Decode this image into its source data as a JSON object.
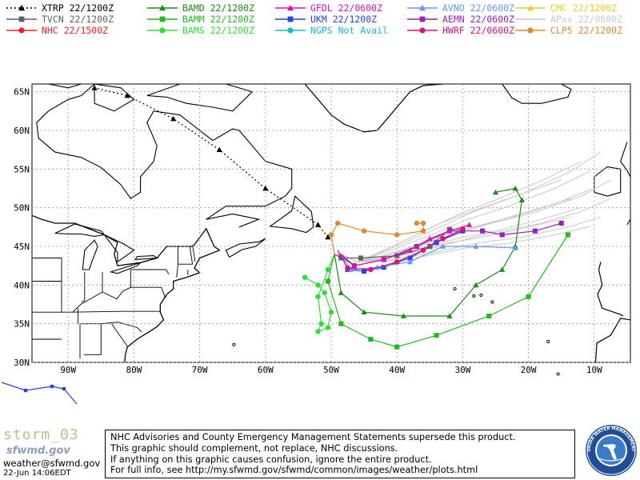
{
  "legend": [
    {
      "label": "XTRP  22/1200Z",
      "color": "#000000",
      "marker": "triangle",
      "dashed": true
    },
    {
      "label": "TVCN  22/1200Z",
      "color": "#606060",
      "marker": "square",
      "dashed": false
    },
    {
      "label": "NHC  22/1500Z",
      "color": "#ee2222",
      "marker": "circle",
      "dashed": false
    },
    {
      "label": "BAMD  22/1200Z",
      "color": "#1a8c1a",
      "marker": "triangle",
      "dashed": false
    },
    {
      "label": "BAMM  22/1200Z",
      "color": "#22bb22",
      "marker": "square",
      "dashed": false
    },
    {
      "label": "BAMS  22/1200Z",
      "color": "#33dd33",
      "marker": "circle",
      "dashed": false
    },
    {
      "label": "GFDL  22/0600Z",
      "color": "#dd11aa",
      "marker": "triangle",
      "dashed": false
    },
    {
      "label": "UKM  22/1200Z",
      "color": "#2244ee",
      "marker": "square",
      "dashed": false
    },
    {
      "label": "NGPS  Not Avail",
      "color": "#11bbcc",
      "marker": "circle",
      "dashed": false
    },
    {
      "label": "AVNO  22/0600Z",
      "color": "#6699ee",
      "marker": "triangle",
      "dashed": false
    },
    {
      "label": "AEMN  22/0600Z",
      "color": "#9922bb",
      "marker": "square",
      "dashed": false
    },
    {
      "label": "HWRF  22/0600Z",
      "color": "#dd1177",
      "marker": "circle",
      "dashed": false
    },
    {
      "label": "CMC  22/1200Z",
      "color": "#eecc22",
      "marker": "triangle",
      "dashed": false
    },
    {
      "label": "APxx  22/0600Z",
      "color": "#c8c8c8",
      "marker": "none",
      "dashed": false
    },
    {
      "label": "CLP5  22/1200Z",
      "color": "#e08833",
      "marker": "circle",
      "dashed": false
    }
  ],
  "map": {
    "lat_labels": [
      "65N",
      "60N",
      "55N",
      "50N",
      "45N",
      "40N",
      "35N",
      "30N"
    ],
    "lon_labels": [
      "90W",
      "80W",
      "70W",
      "60W",
      "50W",
      "40W",
      "30W",
      "20W",
      "10W"
    ],
    "lat_values": [
      65,
      60,
      55,
      50,
      45,
      40,
      35,
      30
    ],
    "lon_values": [
      -90,
      -80,
      -70,
      -60,
      -50,
      -40,
      -30,
      -20,
      -10
    ],
    "lon_range": [
      -95.5,
      -4.5
    ],
    "lat_range": [
      30,
      66
    ]
  },
  "tracks": [
    {
      "name": "XTRP",
      "color": "#000000",
      "marker": "triangle",
      "dashed": true,
      "points": [
        [
          -50.5,
          46.2
        ],
        [
          -52,
          47.8
        ],
        [
          -60,
          52.5
        ],
        [
          -67,
          57.5
        ],
        [
          -74,
          61.5
        ],
        [
          -81,
          64.5
        ],
        [
          -86,
          65.5
        ]
      ]
    },
    {
      "name": "BAMD",
      "color": "#1a8c1a",
      "marker": "triangle",
      "dashed": false,
      "points": [
        [
          -49.5,
          44
        ],
        [
          -48.5,
          39
        ],
        [
          -45,
          36.5
        ],
        [
          -39,
          36
        ],
        [
          -32,
          36
        ],
        [
          -28,
          40
        ],
        [
          -24,
          42
        ],
        [
          -22,
          45
        ],
        [
          -21,
          51
        ],
        [
          -22,
          52.5
        ],
        [
          -25,
          52
        ]
      ]
    },
    {
      "name": "BAMM",
      "color": "#22bb22",
      "marker": "square",
      "dashed": false,
      "points": [
        [
          -49.5,
          44
        ],
        [
          -50.5,
          40.5
        ],
        [
          -48.5,
          35
        ],
        [
          -44,
          33
        ],
        [
          -40,
          32
        ],
        [
          -34,
          33.5
        ],
        [
          -26,
          36
        ],
        [
          -20,
          38.5
        ],
        [
          -14,
          46.5
        ]
      ]
    },
    {
      "name": "BAMS",
      "color": "#33dd33",
      "marker": "circle",
      "dashed": false,
      "points": [
        [
          -49.5,
          44
        ],
        [
          -50.5,
          42
        ],
        [
          -52,
          38.5
        ],
        [
          -51.5,
          35
        ],
        [
          -52,
          34
        ],
        [
          -50.5,
          34.5
        ],
        [
          -50,
          36.5
        ],
        [
          -51,
          39
        ],
        [
          -52,
          40
        ],
        [
          -54,
          41
        ]
      ]
    },
    {
      "name": "CLP5",
      "color": "#e08833",
      "marker": "circle",
      "dashed": false,
      "points": [
        [
          -49.5,
          44
        ],
        [
          -50,
          46.5
        ],
        [
          -49,
          48
        ],
        [
          -45,
          47
        ],
        [
          -40,
          46.5
        ],
        [
          -36,
          47
        ],
        [
          -36,
          48
        ],
        [
          -37,
          48
        ]
      ]
    },
    {
      "name": "TVCN",
      "color": "#606060",
      "marker": "square",
      "dashed": false,
      "points": [
        [
          -49.5,
          44
        ],
        [
          -48.5,
          43.5
        ],
        [
          -45.5,
          43.5
        ],
        [
          -40,
          43.8
        ],
        [
          -35,
          45
        ],
        [
          -32,
          47.2
        ],
        [
          -30,
          47.2
        ]
      ]
    },
    {
      "name": "UKM",
      "color": "#2244ee",
      "marker": "square",
      "dashed": false,
      "points": [
        [
          -48.5,
          44
        ],
        [
          -47.5,
          42
        ],
        [
          -45,
          41.8
        ],
        [
          -42,
          42.3
        ],
        [
          -38,
          43.5
        ],
        [
          -34,
          45.5
        ],
        [
          -30,
          47
        ]
      ]
    },
    {
      "name": "AVNO",
      "color": "#6699ee",
      "marker": "triangle",
      "dashed": false,
      "points": [
        [
          -48.5,
          44
        ],
        [
          -47,
          42
        ],
        [
          -43,
          42.3
        ],
        [
          -38,
          43
        ],
        [
          -33,
          45
        ],
        [
          -28,
          45
        ],
        [
          -22,
          44.8
        ]
      ]
    },
    {
      "name": "AEMN",
      "color": "#9922bb",
      "marker": "square",
      "dashed": false,
      "points": [
        [
          -48.5,
          44
        ],
        [
          -46.5,
          42.5
        ],
        [
          -42,
          43.3
        ],
        [
          -37,
          45
        ],
        [
          -32,
          47
        ],
        [
          -27,
          47
        ],
        [
          -24,
          46.5
        ],
        [
          -19,
          47
        ],
        [
          -15,
          48
        ]
      ]
    },
    {
      "name": "GFDL",
      "color": "#dd11aa",
      "marker": "triangle",
      "dashed": false,
      "points": [
        [
          -49,
          44
        ],
        [
          -46.5,
          42.5
        ],
        [
          -42,
          43.3
        ],
        [
          -38,
          44.5
        ],
        [
          -35,
          46
        ],
        [
          -32,
          47
        ],
        [
          -29,
          47.8
        ]
      ]
    },
    {
      "name": "HWRF",
      "color": "#dd1177",
      "marker": "circle",
      "dashed": false,
      "points": [
        [
          -49,
          44.5
        ],
        [
          -47.5,
          42.2
        ],
        [
          -44,
          42
        ],
        [
          -40,
          43
        ],
        [
          -36,
          44.5
        ],
        [
          -33,
          46
        ],
        [
          -30,
          47.2
        ]
      ]
    }
  ],
  "ensemble_color": "#c8c8c8",
  "footer": {
    "storm": "storm_03",
    "brand": "sfwmd.gov",
    "email": "weather@sfwmd.gov",
    "timestamp": "22-Jun 14:06EDT",
    "disclaimer": [
      "NHC Advisories and County Emergency Management Statements supersede this product.",
      "This graphic should complement, not replace, NHC discussions.",
      "If anything on this graphic causes confusion, ignore the entire product.",
      "For full info, see   http://my.sfwmd.gov/sfwmd/common/images/weather/plots.html"
    ],
    "seal_text": "SOUTH FLORIDA WATER MANAGEMENT DISTRICT"
  }
}
